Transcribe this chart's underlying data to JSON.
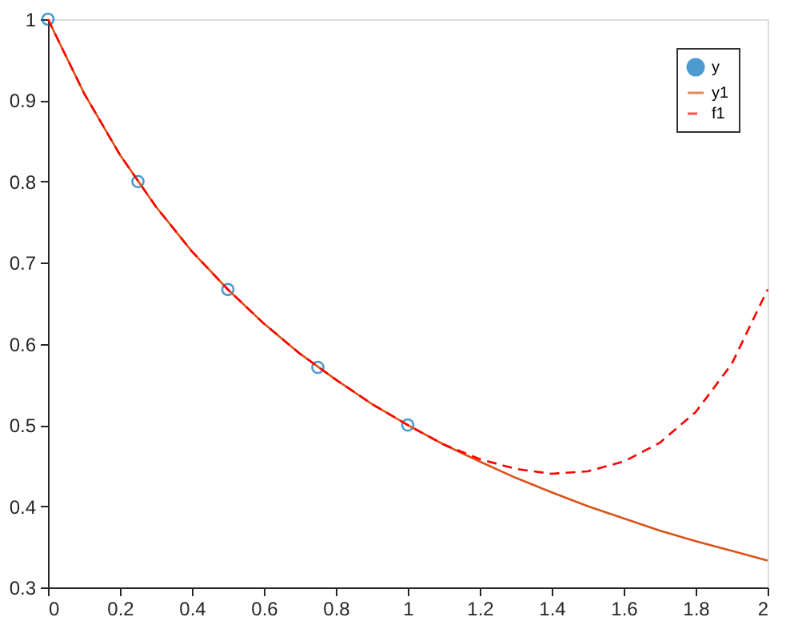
{
  "chart_data": {
    "type": "line",
    "xlim": [
      0,
      2
    ],
    "xticks": [
      0,
      0.2,
      0.4,
      0.6,
      0.8,
      1,
      1.2,
      1.4,
      1.6,
      1.8,
      2
    ],
    "ylim": [
      0.3,
      1
    ],
    "yticks": [
      0.3,
      0.4,
      0.5,
      0.6,
      0.7,
      0.8,
      0.9,
      1
    ],
    "grid": false,
    "legend": "top right",
    "series": [
      {
        "name": "y",
        "type": "scatter",
        "marker": "circle",
        "color": "#0072bd",
        "x": [
          0,
          0.25,
          0.5,
          0.75,
          1
        ],
        "values": [
          1,
          0.8,
          0.667,
          0.571,
          0.5
        ]
      },
      {
        "name": "y1",
        "line_style": "solid",
        "color": "#d95319",
        "x": [
          0,
          0.1,
          0.2,
          0.3,
          0.4,
          0.5,
          0.6,
          0.7,
          0.8,
          0.9,
          1,
          1.1,
          1.2,
          1.3,
          1.4,
          1.5,
          1.6,
          1.7,
          1.8,
          1.9,
          2
        ],
        "values": [
          1,
          0.909,
          0.833,
          0.769,
          0.714,
          0.667,
          0.625,
          0.588,
          0.556,
          0.526,
          0.5,
          0.476,
          0.455,
          0.435,
          0.417,
          0.4,
          0.385,
          0.37,
          0.357,
          0.345,
          0.333
        ]
      },
      {
        "name": "f1",
        "line_style": "dashed",
        "color": "#ff0000",
        "x": [
          0,
          0.1,
          0.2,
          0.3,
          0.4,
          0.5,
          0.6,
          0.7,
          0.8,
          0.9,
          1,
          1.1,
          1.2,
          1.3,
          1.4,
          1.5,
          1.6,
          1.7,
          1.8,
          1.9,
          2
        ],
        "values": [
          1,
          0.909,
          0.833,
          0.769,
          0.714,
          0.667,
          0.625,
          0.588,
          0.556,
          0.526,
          0.5,
          0.476,
          0.458,
          0.446,
          0.44,
          0.443,
          0.455,
          0.478,
          0.516,
          0.575,
          0.667
        ]
      }
    ]
  }
}
